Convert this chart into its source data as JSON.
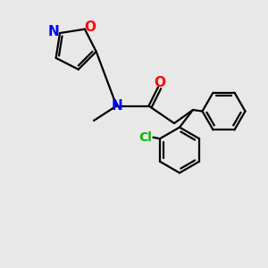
{
  "background_color": "#e8e8e8",
  "bond_color": "#000000",
  "N_color": "#0000ff",
  "O_color": "#ff0000",
  "Cl_color": "#00bb00",
  "line_width": 1.6,
  "figsize": [
    3.0,
    3.0
  ],
  "dpi": 100,
  "xlim": [
    0,
    10
  ],
  "ylim": [
    0,
    10
  ]
}
